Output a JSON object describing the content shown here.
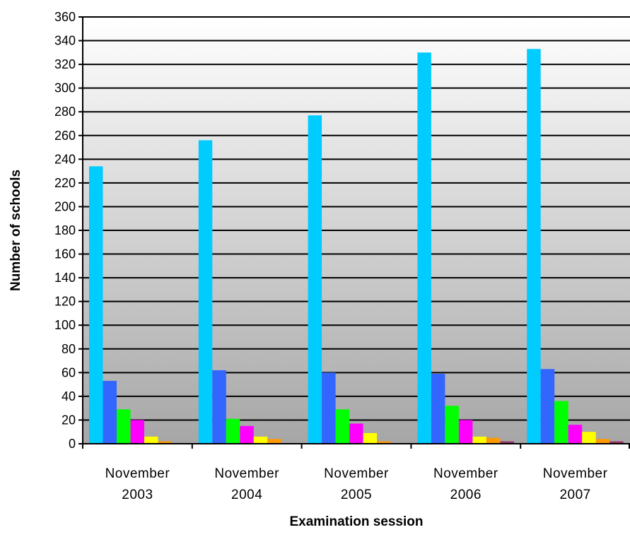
{
  "chart_data": {
    "type": "bar",
    "title": "",
    "xlabel": "Examination session",
    "ylabel": "Number of schools",
    "ylim": [
      0,
      360
    ],
    "ytick_step": 20,
    "grid": true,
    "legend": "none",
    "categories": [
      [
        "November",
        "2003"
      ],
      [
        "November",
        "2004"
      ],
      [
        "November",
        "2005"
      ],
      [
        "November",
        "2006"
      ],
      [
        "November",
        "2007"
      ]
    ],
    "series": [
      {
        "color": "#00CCFF",
        "values": [
          234,
          256,
          277,
          330,
          333
        ]
      },
      {
        "color": "#3366FF",
        "values": [
          53,
          62,
          60,
          59,
          63
        ]
      },
      {
        "color": "#00FF00",
        "values": [
          29,
          21,
          29,
          32,
          36
        ]
      },
      {
        "color": "#FF00FF",
        "values": [
          20,
          15,
          17,
          20,
          16
        ]
      },
      {
        "color": "#FFFF00",
        "values": [
          6,
          6,
          9,
          6,
          10
        ]
      },
      {
        "color": "#FF9900",
        "values": [
          2,
          4,
          2,
          5,
          4
        ]
      },
      {
        "color": "#993366",
        "values": [
          0,
          0,
          0,
          2,
          2
        ]
      }
    ]
  }
}
